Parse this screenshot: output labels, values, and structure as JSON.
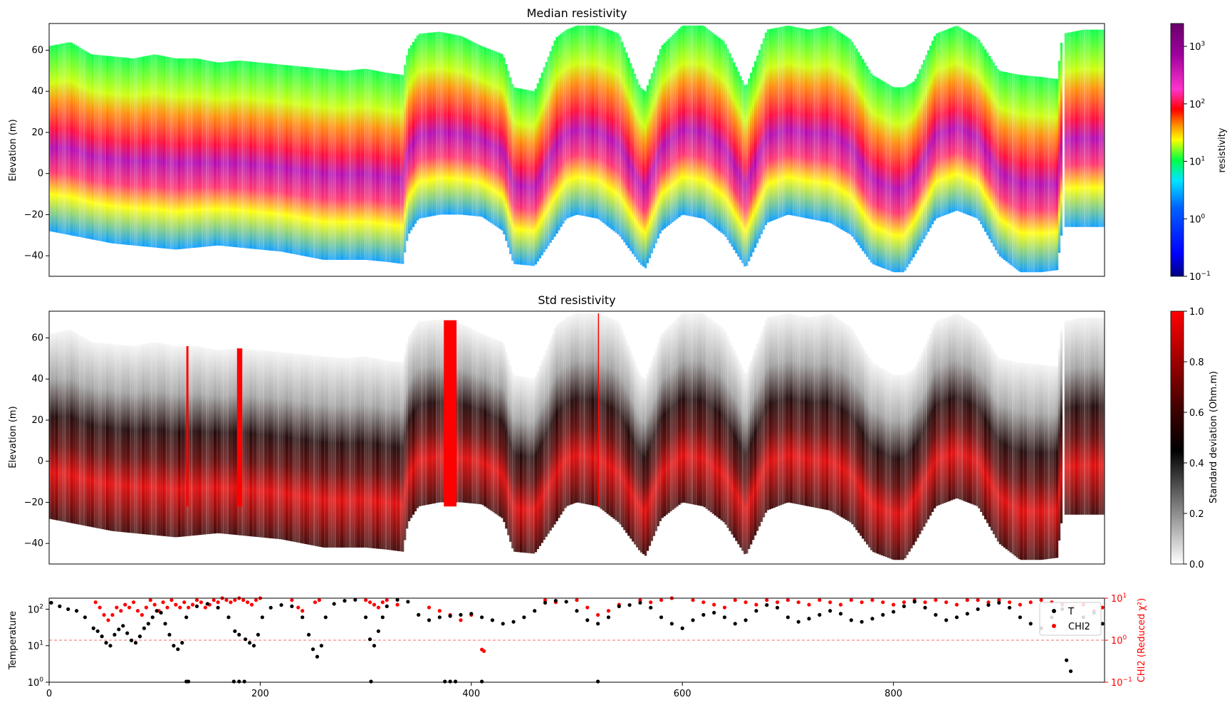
{
  "chart_data": [
    {
      "type": "heatmap",
      "title": "Median resistivity",
      "xlabel": "",
      "ylabel": "Elevation (m)",
      "xlim": [
        0,
        1000
      ],
      "ylim": [
        -50,
        73
      ],
      "yticks": [
        -40,
        -20,
        0,
        20,
        40,
        60
      ],
      "yticklabels": [
        "−40",
        "−20",
        "0",
        "20",
        "40",
        "60"
      ],
      "colorbar": {
        "label": "resistivity",
        "scale": "log",
        "range": [
          0.1,
          2500
        ],
        "ticks": [
          0.1,
          1,
          10,
          100,
          1000
        ],
        "ticklabels": [
          "10",
          "10",
          "10",
          "10",
          "10"
        ],
        "tickexponents": [
          "−1",
          "0",
          "1",
          "2",
          "3"
        ],
        "colors": [
          "#000080",
          "#0000ff",
          "#00e5ff",
          "#00ff44",
          "#ffff00",
          "#ff8800",
          "#ff0000",
          "#ff33cc",
          "#9b009b",
          "#6a006a"
        ]
      },
      "profile": {
        "x": [
          0,
          20,
          40,
          60,
          80,
          100,
          120,
          140,
          160,
          180,
          200,
          220,
          240,
          260,
          280,
          300,
          320,
          335,
          340,
          350,
          370,
          390,
          410,
          430,
          440,
          460,
          480,
          490,
          500,
          520,
          540,
          560,
          565,
          580,
          600,
          620,
          640,
          660,
          680,
          700,
          720,
          740,
          760,
          780,
          800,
          810,
          820,
          840,
          860,
          880,
          900,
          920,
          940,
          955,
          960,
          980,
          1000
        ],
        "top": [
          62,
          64,
          58,
          57,
          56,
          58,
          56,
          56,
          54,
          55,
          54,
          53,
          52,
          51,
          50,
          51,
          49,
          48,
          60,
          68,
          69,
          67,
          62,
          58,
          42,
          40,
          66,
          70,
          72,
          72,
          68,
          42,
          40,
          62,
          72,
          72,
          64,
          42,
          70,
          72,
          70,
          72,
          65,
          48,
          42,
          42,
          45,
          68,
          72,
          66,
          50,
          48,
          47,
          46,
          68,
          70,
          70
        ],
        "bottom": [
          -28,
          -30,
          -32,
          -34,
          -35,
          -36,
          -37,
          -36,
          -35,
          -36,
          -37,
          -38,
          -40,
          -42,
          -42,
          -42,
          -43,
          -44,
          -30,
          -22,
          -20,
          -20,
          -21,
          -28,
          -44,
          -45,
          -30,
          -22,
          -20,
          -22,
          -30,
          -44,
          -46,
          -28,
          -20,
          -22,
          -30,
          -46,
          -24,
          -20,
          -22,
          -24,
          -30,
          -44,
          -48,
          -48,
          -40,
          -22,
          -18,
          -22,
          -40,
          -48,
          -48,
          -47,
          -26,
          -26,
          -26
        ]
      }
    },
    {
      "type": "heatmap",
      "title": "Std resistivity",
      "xlabel": "",
      "ylabel": "Elevation (m)",
      "xlim": [
        0,
        1000
      ],
      "ylim": [
        -50,
        73
      ],
      "yticks": [
        -40,
        -20,
        0,
        20,
        40,
        60
      ],
      "yticklabels": [
        "−40",
        "−20",
        "0",
        "20",
        "40",
        "60"
      ],
      "colorbar": {
        "label": "Standard deviation (Ohm.m)",
        "range": [
          0,
          1
        ],
        "ticks": [
          0.0,
          0.2,
          0.4,
          0.6,
          0.8,
          1.0
        ],
        "ticklabels": [
          "0.0",
          "0.2",
          "0.4",
          "0.6",
          "0.8",
          "1.0"
        ],
        "colors": [
          "#ffffff",
          "#000000",
          "#ff0000"
        ]
      }
    },
    {
      "type": "scatter",
      "title": "",
      "xlabel": "",
      "ylabel": "Temperature",
      "ylabel_right": "CHI2 (Reduced χ²)",
      "xlim": [
        0,
        1000
      ],
      "xticks": [
        0,
        200,
        400,
        600,
        800
      ],
      "xticklabels": [
        "0",
        "200",
        "400",
        "600",
        "800"
      ],
      "ylim": [
        1,
        200
      ],
      "yscale": "log",
      "yticks": [
        1,
        10,
        100
      ],
      "yticklabels": [
        "10",
        "10",
        "10"
      ],
      "ytickexponents": [
        "0",
        "1",
        "2"
      ],
      "ylim_right": [
        0.1,
        10
      ],
      "yscale_right": "log",
      "yticks_right": [
        0.1,
        1,
        10
      ],
      "yticklabels_right": [
        "10",
        "10",
        "10"
      ],
      "ytickexponents_right": [
        "−1",
        "0",
        "1"
      ],
      "reference_line": 1,
      "legend": {
        "placement": "right",
        "entries": [
          {
            "name": "T",
            "color": "#000000"
          },
          {
            "name": "CHI2",
            "color": "#ff0000"
          }
        ]
      },
      "series": [
        {
          "name": "T",
          "color": "#000000",
          "x": [
            2,
            10,
            18,
            26,
            34,
            42,
            46,
            50,
            54,
            58,
            62,
            66,
            70,
            74,
            78,
            82,
            86,
            90,
            94,
            98,
            102,
            106,
            110,
            114,
            118,
            122,
            126,
            130,
            140,
            150,
            160,
            170,
            176,
            180,
            186,
            190,
            194,
            198,
            202,
            210,
            220,
            230,
            240,
            246,
            250,
            254,
            258,
            262,
            270,
            280,
            290,
            300,
            304,
            308,
            312,
            316,
            320,
            330,
            340,
            350,
            360,
            370,
            380,
            390,
            400,
            410,
            420,
            430,
            440,
            450,
            460,
            470,
            480,
            490,
            500,
            510,
            520,
            530,
            540,
            550,
            560,
            570,
            580,
            590,
            600,
            610,
            620,
            630,
            640,
            650,
            660,
            670,
            680,
            690,
            700,
            710,
            720,
            730,
            740,
            750,
            760,
            770,
            780,
            790,
            800,
            810,
            820,
            830,
            840,
            850,
            860,
            870,
            880,
            890,
            900,
            910,
            920,
            930,
            940,
            950,
            960,
            964,
            968,
            980,
            990,
            998,
            130,
            132,
            175,
            180,
            185,
            305,
            375,
            380,
            385,
            410,
            520
          ],
          "y": [
            150,
            120,
            100,
            90,
            60,
            30,
            25,
            18,
            12,
            10,
            20,
            28,
            35,
            22,
            14,
            12,
            18,
            30,
            40,
            60,
            90,
            80,
            40,
            20,
            10,
            8,
            12,
            60,
            120,
            140,
            110,
            60,
            25,
            20,
            15,
            12,
            10,
            20,
            60,
            110,
            130,
            120,
            60,
            20,
            8,
            5,
            10,
            60,
            140,
            170,
            180,
            60,
            15,
            10,
            25,
            60,
            120,
            180,
            160,
            70,
            50,
            60,
            65,
            70,
            75,
            60,
            50,
            40,
            45,
            60,
            90,
            150,
            170,
            160,
            90,
            50,
            40,
            60,
            120,
            130,
            150,
            110,
            60,
            40,
            30,
            50,
            70,
            80,
            60,
            40,
            50,
            90,
            130,
            110,
            60,
            45,
            55,
            70,
            90,
            75,
            50,
            45,
            55,
            70,
            85,
            120,
            160,
            110,
            70,
            50,
            60,
            75,
            100,
            130,
            150,
            110,
            60,
            40,
            30,
            60,
            100,
            4,
            2,
            60,
            80,
            40,
            1,
            1,
            1,
            1,
            1,
            1,
            1,
            1,
            1,
            1,
            1
          ]
        },
        {
          "name": "CHI2",
          "color": "#ff0000",
          "x": [
            44,
            48,
            52,
            56,
            60,
            64,
            68,
            72,
            76,
            80,
            84,
            88,
            92,
            96,
            100,
            104,
            108,
            112,
            116,
            120,
            124,
            128,
            132,
            136,
            140,
            144,
            148,
            152,
            156,
            160,
            164,
            168,
            172,
            176,
            180,
            184,
            188,
            192,
            196,
            200,
            230,
            236,
            240,
            252,
            256,
            300,
            304,
            308,
            312,
            316,
            320,
            330,
            360,
            370,
            380,
            390,
            400,
            410,
            412,
            470,
            480,
            500,
            510,
            520,
            530,
            540,
            560,
            570,
            580,
            590,
            610,
            620,
            630,
            640,
            650,
            660,
            670,
            680,
            690,
            700,
            710,
            720,
            730,
            740,
            750,
            760,
            770,
            780,
            790,
            800,
            810,
            820,
            830,
            840,
            850,
            860,
            870,
            880,
            890,
            900,
            910,
            920,
            930,
            940,
            950,
            960,
            970,
            980,
            990,
            998
          ],
          "y": [
            8,
            6,
            4,
            3,
            4,
            6,
            5,
            7,
            6,
            8,
            5,
            4,
            6,
            9,
            7,
            5,
            8,
            6,
            9,
            7,
            6,
            8,
            6,
            7,
            9,
            8,
            6,
            7,
            9,
            8,
            10,
            9,
            8,
            9,
            10,
            9,
            8,
            7,
            9,
            10,
            9,
            6,
            5,
            8,
            9,
            9,
            8,
            7,
            6,
            8,
            9,
            7,
            6,
            5,
            4,
            3,
            4,
            0.6,
            0.55,
            9,
            8,
            9,
            6,
            4,
            5,
            7,
            9,
            8,
            9,
            10,
            9,
            8,
            7,
            6,
            9,
            8,
            7,
            9,
            8,
            9,
            8,
            7,
            9,
            8,
            7,
            9,
            8,
            9,
            8,
            7,
            8,
            9,
            8,
            9,
            8,
            7,
            9,
            9,
            8,
            9,
            8,
            7,
            8,
            9,
            8,
            7,
            6,
            7,
            5,
            6
          ]
        }
      ]
    }
  ]
}
